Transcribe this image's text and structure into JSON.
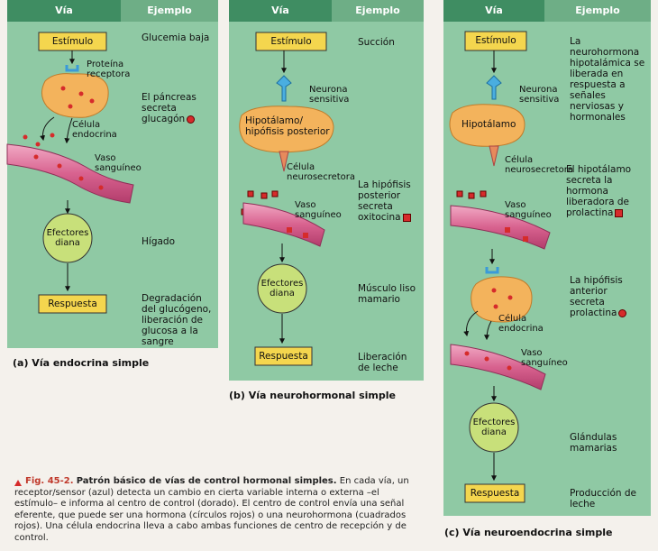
{
  "panels": [
    {
      "header": [
        "Vía",
        "Ejemplo"
      ],
      "diagram": [
        "Estímulo",
        "Proteína receptora",
        "Célula endocrina",
        "Vaso sanguíneo",
        "Efectores diana",
        "Respuesta"
      ],
      "examples": [
        "Glucemia baja",
        "El páncreas secreta glucagón",
        "Hígado",
        "Degradación del glucógeno, liberación de glucosa a la sangre"
      ],
      "caption": "(a) Vía endocrina simple"
    },
    {
      "header": [
        "Vía",
        "Ejemplo"
      ],
      "diagram": [
        "Estímulo",
        "Neurona sensitiva",
        "Hipotálamo/ hipófisis posterior",
        "Célula neurosecretora",
        "Vaso sanguíneo",
        "Efectores diana",
        "Respuesta"
      ],
      "examples": [
        "Succión",
        "La hipófisis posterior secreta oxitocina",
        "Músculo liso mamario",
        "Liberación de leche"
      ],
      "caption": "(b) Vía neurohormonal simple"
    },
    {
      "header": [
        "Vía",
        "Ejemplo"
      ],
      "diagram": [
        "Estímulo",
        "Neurona sensitiva",
        "Hipotálamo",
        "Célula neurosecretora",
        "Vaso sanguíneo",
        "Célula endocrina",
        "Vaso sanguíneo",
        "Efectores diana",
        "Respuesta"
      ],
      "examples": [
        "La neurohormona hipotalámica se liberada en respuesta a señales nerviosas y hormonales",
        "El hipotálamo secreta la hormona liberadora de prolactina",
        "La hipófisis anterior secreta prolactina",
        "Glándulas mamarias",
        "Producción de leche"
      ],
      "caption": "(c) Vía neuroendocrina simple"
    }
  ],
  "figure_caption": {
    "label": "Fig. 45-2.",
    "title": "Patrón básico de vías de control hormonal simples.",
    "text": "En cada vía, un receptor/sensor (azul) detecta un cambio en cierta variable interna o externa –el estímulo– e informa al centro de control (dorado). El centro de control envía una señal eferente, que puede ser una hormona (círculos rojos) o una neurohormona (cuadrados rojos). Una célula endocrina lleva a cabo ambas funciones de centro de recepción y de control."
  }
}
